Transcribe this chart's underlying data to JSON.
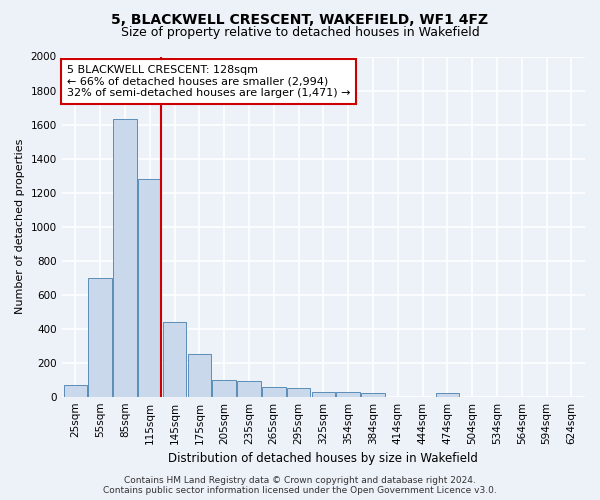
{
  "title1": "5, BLACKWELL CRESCENT, WAKEFIELD, WF1 4FZ",
  "title2": "Size of property relative to detached houses in Wakefield",
  "xlabel": "Distribution of detached houses by size in Wakefield",
  "ylabel": "Number of detached properties",
  "categories": [
    "25sqm",
    "55sqm",
    "85sqm",
    "115sqm",
    "145sqm",
    "175sqm",
    "205sqm",
    "235sqm",
    "265sqm",
    "295sqm",
    "325sqm",
    "354sqm",
    "384sqm",
    "414sqm",
    "444sqm",
    "474sqm",
    "504sqm",
    "534sqm",
    "564sqm",
    "594sqm",
    "624sqm"
  ],
  "values": [
    70,
    700,
    1630,
    1280,
    440,
    250,
    100,
    90,
    55,
    50,
    30,
    30,
    20,
    0,
    0,
    20,
    0,
    0,
    0,
    0,
    0
  ],
  "bar_color": "#c9d8ea",
  "bar_edge_color": "#5b8db8",
  "bg_color": "#edf1f8",
  "grid_color": "#ffffff",
  "red_line_color": "#cc0000",
  "annotation_line1": "5 BLACKWELL CRESCENT: 128sqm",
  "annotation_line2": "← 66% of detached houses are smaller (2,994)",
  "annotation_line3": "32% of semi-detached houses are larger (1,471) →",
  "annotation_box_color": "#ffffff",
  "annotation_box_edge": "#cc0000",
  "ylim": [
    0,
    2000
  ],
  "yticks": [
    0,
    200,
    400,
    600,
    800,
    1000,
    1200,
    1400,
    1600,
    1800,
    2000
  ],
  "footer": "Contains HM Land Registry data © Crown copyright and database right 2024.\nContains public sector information licensed under the Open Government Licence v3.0.",
  "title1_fontsize": 10,
  "title2_fontsize": 9,
  "xlabel_fontsize": 8.5,
  "ylabel_fontsize": 8,
  "tick_fontsize": 7.5,
  "annot_fontsize": 8,
  "footer_fontsize": 6.5
}
